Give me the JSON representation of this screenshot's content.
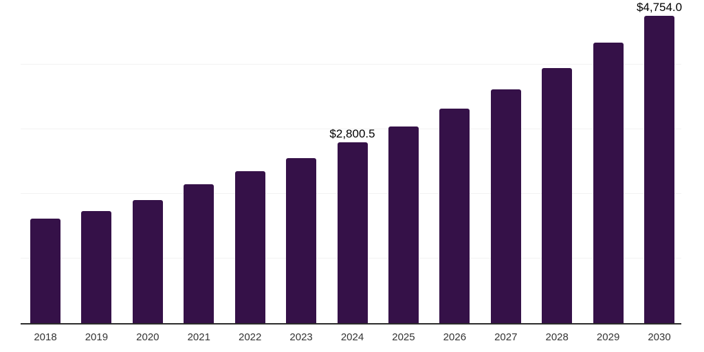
{
  "chart_data": {
    "type": "bar",
    "title": "",
    "xlabel": "",
    "ylabel": "",
    "categories": [
      "2018",
      "2019",
      "2020",
      "2021",
      "2022",
      "2023",
      "2024",
      "2025",
      "2026",
      "2027",
      "2028",
      "2029",
      "2030"
    ],
    "values": [
      1615,
      1730,
      1903,
      2152,
      2353,
      2556,
      2800.5,
      3046,
      3315,
      3621,
      3951,
      4338,
      4754
    ],
    "value_labels": [
      "",
      "",
      "",
      "",
      "",
      "",
      "$2,800.5",
      "",
      "",
      "",
      "",
      "",
      "$4,754.0"
    ],
    "ylim": [
      0,
      5000
    ],
    "gridline_values": [
      1000,
      2000,
      3000,
      4000
    ],
    "grid": "on",
    "legend": "none"
  },
  "style": {
    "bar_color": "#351148",
    "axis_line_color": "#2b2b2b",
    "gridline_color": "#f2f2f2",
    "value_label_color": "#000000",
    "tick_label_color": "#333333",
    "background": "#ffffff"
  }
}
